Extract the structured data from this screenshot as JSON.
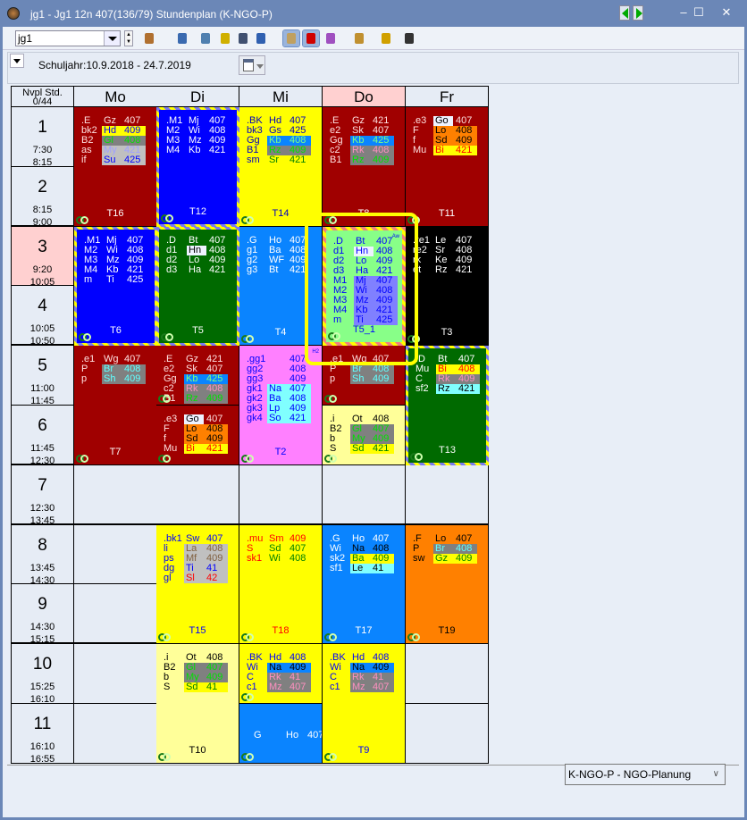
{
  "window": {
    "title": "jg1 - Jg1 12n 407(136/79)  Stundenplan  (K-NGO-P)",
    "minimize": "–",
    "maximize": "☐",
    "close": "✕"
  },
  "toolbar": {
    "element_value": "jg1",
    "icons": [
      "teachers-icon",
      "expand-icon",
      "door-icon",
      "lock-icon",
      "binoculars-icon",
      "undo-icon",
      "palette-icon",
      "pin-icon",
      "tree-icon",
      "settings-page-icon",
      "gear-icon",
      "list-menu-icon"
    ]
  },
  "panel": {
    "school_year": "Schuljahr:10.9.2018 - 24.7.2019"
  },
  "grid": {
    "corner": [
      "Nvpl Std.",
      "0/44"
    ],
    "days": [
      "Mo",
      "Di",
      "Mi",
      "Do",
      "Fr"
    ],
    "highlight_day": "Do",
    "highlight_period": 3,
    "periods": [
      {
        "n": "1",
        "start": "7:30",
        "end": "8:15"
      },
      {
        "n": "2",
        "start": "8:15",
        "end": "9:00"
      },
      {
        "n": "3",
        "start": "9:20",
        "end": "10:05"
      },
      {
        "n": "4",
        "start": "10:05",
        "end": "10:50"
      },
      {
        "n": "5",
        "start": "11:00",
        "end": "11:45"
      },
      {
        "n": "6",
        "start": "11:45",
        "end": "12:30"
      },
      {
        "n": "7",
        "start": "12:30",
        "end": "13:45"
      },
      {
        "n": "8",
        "start": "13:45",
        "end": "14:30"
      },
      {
        "n": "9",
        "start": "14:30",
        "end": "15:15"
      },
      {
        "n": "10",
        "start": "15:25",
        "end": "16:10"
      },
      {
        "n": "11",
        "start": "16:10",
        "end": "16:55"
      }
    ]
  },
  "colors": {
    "darkred": "#a00000",
    "blue": "#0000ff",
    "green": "#006a00",
    "lightblue": "#0a84ff",
    "yellow": "#ffff00",
    "lightyellow": "#ffff99",
    "pink": "#ff80ff",
    "orange": "#ff8000",
    "black": "#000000",
    "lightgreen": "#88ff88",
    "selection": "#ffff00"
  },
  "blocks": [
    {
      "day": 0,
      "p": 1,
      "span": 2,
      "bg": "#a00000",
      "fg": "#ffe0e0",
      "label": "T16",
      "lc": "#ffffff",
      "lines": [
        {
          "c": ".E",
          "t": "Gz",
          "r": "407"
        },
        {
          "c": "bk2",
          "t": "Hd",
          "r": "409",
          "bg": "#ffff00",
          "fg": "#0000ff"
        },
        {
          "c": "B2",
          "t": "Gl",
          "r": "408",
          "bg": "#808080",
          "fg": "#00e000"
        },
        {
          "c": "as",
          "t": "My",
          "r": "421",
          "bg": "#c0c0c0",
          "fg": "#a0a0ff"
        },
        {
          "c": "if",
          "t": "Su",
          "r": "425",
          "bg": "#c0c0c0",
          "fg": "#0000ff"
        }
      ]
    },
    {
      "day": 0,
      "p": 3,
      "span": 2,
      "bg": "#0000ff",
      "fg": "#ffffff",
      "dash": true,
      "label": "T6",
      "lc": "#ffffff",
      "lines": [
        {
          "c": ".M1",
          "t": "Mj",
          "r": "407"
        },
        {
          "c": "M2",
          "t": "Wi",
          "r": "408"
        },
        {
          "c": "M3",
          "t": "Mz",
          "r": "409"
        },
        {
          "c": "M4",
          "t": "Kb",
          "r": "421"
        },
        {
          "c": "m",
          "t": "Ti",
          "r": "425"
        }
      ]
    },
    {
      "day": 0,
      "p": 5,
      "span": 2,
      "bg": "#a00000",
      "fg": "#ffe0e0",
      "label": "T7",
      "lc": "#ffffff",
      "lines": [
        {
          "c": ".e1",
          "t": "Wg",
          "r": "407"
        },
        {
          "c": "P",
          "t": "Br",
          "r": "408",
          "bg": "#808080",
          "fg": "#60ffff"
        },
        {
          "c": "p",
          "t": "Sh",
          "r": "409",
          "bg": "#808080",
          "fg": "#60ffff"
        }
      ]
    },
    {
      "day": 1,
      "p": 1,
      "span": 2,
      "bg": "#0000ff",
      "fg": "#ffffff",
      "dash": true,
      "label": "T12",
      "lc": "#ffffff",
      "lines": [
        {
          "c": ".M1",
          "t": "Mj",
          "r": "407"
        },
        {
          "c": "M2",
          "t": "Wi",
          "r": "408"
        },
        {
          "c": "M3",
          "t": "Mz",
          "r": "409"
        },
        {
          "c": "M4",
          "t": "Kb",
          "r": "421"
        }
      ]
    },
    {
      "day": 1,
      "p": 3,
      "span": 2,
      "bg": "#006a00",
      "fg": "#ffffff",
      "dash": true,
      "label": "T5",
      "lc": "#ffffff",
      "lines": [
        {
          "c": ".D",
          "t": "Bt",
          "r": "407"
        },
        {
          "c": "d1",
          "t": "Hn",
          "r": "408",
          "bg": "#eef2ff",
          "fg": "#000000",
          "tonly": true
        },
        {
          "c": "d2",
          "t": "Lo",
          "r": "409"
        },
        {
          "c": "d3",
          "t": "Ha",
          "r": "421"
        }
      ]
    },
    {
      "day": 1,
      "p": 5,
      "span": 1,
      "bg": "#a00000",
      "fg": "#ffe0e0",
      "label": "",
      "lc": "#ffffff",
      "lines": [
        {
          "c": ".E",
          "t": "Gz",
          "r": "421"
        },
        {
          "c": "e2",
          "t": "Sk",
          "r": "407"
        },
        {
          "c": "Gg",
          "t": "Kb",
          "r": "425",
          "bg": "#0a84ff",
          "fg": "#80ff80"
        },
        {
          "c": "c2",
          "t": "Rk",
          "r": "408",
          "bg": "#808080",
          "fg": "#ff90c0"
        },
        {
          "c": "B1",
          "t": "Rz",
          "r": "409",
          "bg": "#808080",
          "fg": "#00e000"
        }
      ]
    },
    {
      "day": 1,
      "p": 6,
      "span": 1,
      "bg": "#a00000",
      "fg": "#ffe0e0",
      "label": "",
      "lc": "#ffffff",
      "lines": [
        {
          "c": ".e3",
          "t": "Go",
          "r": "407",
          "bg": "#eef2ff",
          "fg": "#000000",
          "tonly": true
        },
        {
          "c": "F",
          "t": "Lo",
          "r": "408",
          "bg": "#ff8000",
          "fg": "#000000"
        },
        {
          "c": "f",
          "t": "Sd",
          "r": "409",
          "bg": "#ff8000",
          "fg": "#000000"
        },
        {
          "c": "Mu",
          "t": "Bi",
          "r": "421",
          "bg": "#ffff00",
          "fg": "#ff0000"
        }
      ]
    },
    {
      "day": 1,
      "p": 8,
      "span": 2,
      "bg": "#ffff00",
      "fg": "#0000ff",
      "label": "T15",
      "lc": "#0000ff",
      "lines": [
        {
          "c": ".bk1",
          "t": "Sw",
          "r": "407"
        },
        {
          "c": "li",
          "t": "La",
          "r": "408",
          "bg": "#c0c0c0",
          "fg": "#806040"
        },
        {
          "c": "ps",
          "t": "Mf",
          "r": "409",
          "bg": "#c0c0c0",
          "fg": "#806040"
        },
        {
          "c": "dg",
          "t": "Ti",
          "r": "41",
          "bg": "#c0c0c0",
          "fg": "#0000ff"
        },
        {
          "c": "gl",
          "t": "Sl",
          "r": "42",
          "bg": "#c0c0c0",
          "fg": "#ff0000"
        }
      ]
    },
    {
      "day": 1,
      "p": 10,
      "span": 2,
      "bg": "#ffff99",
      "fg": "#000000",
      "label": "T10",
      "lc": "#000000",
      "lines": [
        {
          "c": ".i",
          "t": "Ot",
          "r": "408"
        },
        {
          "c": "B2",
          "t": "Gl",
          "r": "407",
          "bg": "#808080",
          "fg": "#00e000"
        },
        {
          "c": "b",
          "t": "My",
          "r": "409",
          "bg": "#808080",
          "fg": "#00e000"
        },
        {
          "c": "S",
          "t": "Sd",
          "r": "41",
          "bg": "#ffff00",
          "fg": "#008000"
        }
      ]
    },
    {
      "day": 2,
      "p": 1,
      "span": 2,
      "bg": "#ffff00",
      "fg": "#0000c0",
      "label": "T14",
      "lc": "#0000c0",
      "lines": [
        {
          "c": ".BK",
          "t": "Hd",
          "r": "407"
        },
        {
          "c": "bk3",
          "t": "Gs",
          "r": "425"
        },
        {
          "c": "Gg",
          "t": "Kb",
          "r": "408",
          "bg": "#0a84ff",
          "fg": "#80ff80"
        },
        {
          "c": "B1",
          "t": "Rz",
          "r": "409",
          "bg": "#808080",
          "fg": "#00e000"
        },
        {
          "c": "sm",
          "t": "Sr",
          "r": "421",
          "fg": "#008000",
          "lcol": "#0000c0"
        }
      ]
    },
    {
      "day": 2,
      "p": 3,
      "span": 2,
      "bg": "#0a84ff",
      "fg": "#ffffff",
      "label": "T4",
      "lc": "#ffffff",
      "lines": [
        {
          "c": ".G",
          "t": "Ho",
          "r": "407"
        },
        {
          "c": "g1",
          "t": "Ba",
          "r": "408"
        },
        {
          "c": "g2",
          "t": "WF",
          "r": "409"
        },
        {
          "c": "g3",
          "t": "Bt",
          "r": "421"
        }
      ]
    },
    {
      "day": 2,
      "p": 5,
      "span": 2,
      "bg": "#ff80ff",
      "fg": "#0000ff",
      "label": "T2",
      "lc": "#0000ff",
      "tag": "H2",
      "lines": [
        {
          "c": ".gg1",
          "t": "",
          "r": "407"
        },
        {
          "c": "gg2",
          "t": "",
          "r": "408"
        },
        {
          "c": "gg3",
          "t": "",
          "r": "409"
        },
        {
          "c": "gk1",
          "t": "Na",
          "r": "407",
          "bg": "#80ffff",
          "fg": "#0000ff"
        },
        {
          "c": "gk2",
          "t": "Ba",
          "r": "408",
          "bg": "#80ffff",
          "fg": "#0000ff"
        },
        {
          "c": "gk3",
          "t": "Lp",
          "r": "409",
          "bg": "#80ffff",
          "fg": "#0000ff"
        },
        {
          "c": "gk4",
          "t": "So",
          "r": "421",
          "bg": "#80ffff",
          "fg": "#0000ff"
        }
      ]
    },
    {
      "day": 2,
      "p": 8,
      "span": 2,
      "bg": "#ffff00",
      "fg": "#ff0000",
      "label": "T18",
      "lc": "#ff0000",
      "lines": [
        {
          "c": ".mu",
          "t": "Sm",
          "r": "409"
        },
        {
          "c": "S",
          "t": "Sd",
          "r": "407",
          "fg": "#008000",
          "lcol": "#ff0000"
        },
        {
          "c": "sk1",
          "t": "Wi",
          "r": "408",
          "fg": "#008000",
          "lcol": "#ff0000"
        }
      ]
    },
    {
      "day": 2,
      "p": 10,
      "span": 1,
      "bg": "#ffff00",
      "fg": "#0000ff",
      "label": "",
      "lc": "#0000ff",
      "lines": [
        {
          "c": ".BK",
          "t": "Hd",
          "r": "408"
        },
        {
          "c": "Wi",
          "t": "Na",
          "r": "409",
          "bg": "#0a84ff",
          "fg": "#000000"
        },
        {
          "c": "C",
          "t": "Rk",
          "r": "41",
          "bg": "#808080",
          "fg": "#ff90c0"
        },
        {
          "c": "c1",
          "t": "Mz",
          "r": "407",
          "bg": "#808080",
          "fg": "#ff90c0"
        }
      ]
    },
    {
      "day": 2,
      "p": 11,
      "span": 1,
      "bg": "#0a84ff",
      "fg": "#ffffff",
      "label": "",
      "lc": "#ffffff",
      "center": true,
      "lines": [
        {
          "c": "G",
          "t": "Ho",
          "r": "407"
        }
      ]
    },
    {
      "day": 3,
      "p": 1,
      "span": 2,
      "bg": "#a00000",
      "fg": "#ffe0e0",
      "label": "T8",
      "lc": "#ffffff",
      "lines": [
        {
          "c": ".E",
          "t": "Gz",
          "r": "421"
        },
        {
          "c": "e2",
          "t": "Sk",
          "r": "407"
        },
        {
          "c": "Gg",
          "t": "Kb",
          "r": "425",
          "bg": "#0a84ff",
          "fg": "#80ff80"
        },
        {
          "c": "c2",
          "t": "Rk",
          "r": "408",
          "bg": "#808080",
          "fg": "#ff90c0"
        },
        {
          "c": "B1",
          "t": "Rz",
          "r": "409",
          "bg": "#808080",
          "fg": "#00e000"
        }
      ]
    },
    {
      "day": 3,
      "p": 3,
      "span": 2,
      "bg": "#88ff88",
      "fg": "#0000ff",
      "dashp": true,
      "label": "T5_1",
      "lc": "#0000ff",
      "tag": "Aw",
      "lines": [
        {
          "c": ".D",
          "t": "Bt",
          "r": "407"
        },
        {
          "c": "d1",
          "t": "Hn",
          "r": "408",
          "bg": "#eef2ff",
          "fg": "#0000ff",
          "tonly": true
        },
        {
          "c": "d2",
          "t": "Lo",
          "r": "409"
        },
        {
          "c": "d3",
          "t": "Ha",
          "r": "421"
        },
        {
          "c": "M1",
          "t": "Mj",
          "r": "407",
          "bg": "#8080ff",
          "fg": "#0000ff"
        },
        {
          "c": "M2",
          "t": "Wi",
          "r": "408",
          "bg": "#8080ff",
          "fg": "#0000ff"
        },
        {
          "c": "M3",
          "t": "Mz",
          "r": "409",
          "bg": "#8080ff",
          "fg": "#0000ff"
        },
        {
          "c": "M4",
          "t": "Kb",
          "r": "421",
          "bg": "#8080ff",
          "fg": "#0000ff"
        },
        {
          "c": "m",
          "t": "Ti",
          "r": "425",
          "bg": "#8080ff",
          "fg": "#0000ff"
        }
      ]
    },
    {
      "day": 3,
      "p": 5,
      "span": 1,
      "bg": "#a00000",
      "fg": "#ffe0e0",
      "label": "",
      "lc": "#ffffff",
      "lines": [
        {
          "c": ".e1",
          "t": "Wg",
          "r": "407"
        },
        {
          "c": "P",
          "t": "Br",
          "r": "408",
          "bg": "#808080",
          "fg": "#60ffff"
        },
        {
          "c": "p",
          "t": "Sh",
          "r": "409",
          "bg": "#808080",
          "fg": "#60ffff"
        }
      ]
    },
    {
      "day": 3,
      "p": 6,
      "span": 1,
      "bg": "#ffff99",
      "fg": "#000000",
      "label": "",
      "lc": "#000000",
      "lines": [
        {
          "c": ".i",
          "t": "Ot",
          "r": "408"
        },
        {
          "c": "B2",
          "t": "Gl",
          "r": "407",
          "bg": "#808080",
          "fg": "#00e000"
        },
        {
          "c": "b",
          "t": "My",
          "r": "409",
          "bg": "#808080",
          "fg": "#00e000"
        },
        {
          "c": "S",
          "t": "Sd",
          "r": "421",
          "bg": "#ffff00",
          "fg": "#008000"
        }
      ]
    },
    {
      "day": 3,
      "p": 8,
      "span": 2,
      "bg": "#0a84ff",
      "fg": "#ffffff",
      "label": "T17",
      "lc": "#ffffff",
      "lines": [
        {
          "c": ".G",
          "t": "Ho",
          "r": "407"
        },
        {
          "c": "Wi",
          "t": "Na",
          "r": "408",
          "fg": "#000000",
          "lcol": "#ffffff"
        },
        {
          "c": "sk2",
          "t": "Ba",
          "r": "409",
          "bg": "#ffff00",
          "fg": "#008000"
        },
        {
          "c": "sf1",
          "t": "Le",
          "r": "41",
          "bg": "#80ffff",
          "fg": "#000000"
        }
      ]
    },
    {
      "day": 3,
      "p": 10,
      "span": 2,
      "bg": "#ffff00",
      "fg": "#0000ff",
      "label": "T9",
      "lc": "#0000ff",
      "lines": [
        {
          "c": ".BK",
          "t": "Hd",
          "r": "408"
        },
        {
          "c": "Wi",
          "t": "Na",
          "r": "409",
          "bg": "#0a84ff",
          "fg": "#000000"
        },
        {
          "c": "C",
          "t": "Rk",
          "r": "41",
          "bg": "#808080",
          "fg": "#ff90c0"
        },
        {
          "c": "c1",
          "t": "Mz",
          "r": "407",
          "bg": "#808080",
          "fg": "#ff90c0"
        }
      ]
    },
    {
      "day": 4,
      "p": 1,
      "span": 2,
      "bg": "#a00000",
      "fg": "#ffe0e0",
      "label": "T11",
      "lc": "#ffffff",
      "lines": [
        {
          "c": ".e3",
          "t": "Go",
          "r": "407",
          "bg": "#eef2ff",
          "fg": "#000000",
          "tonly": true
        },
        {
          "c": "F",
          "t": "Lo",
          "r": "408",
          "bg": "#ff8000",
          "fg": "#000000"
        },
        {
          "c": "f",
          "t": "Sd",
          "r": "409",
          "bg": "#ff8000",
          "fg": "#000000"
        },
        {
          "c": "Mu",
          "t": "Bi",
          "r": "421",
          "bg": "#ffff00",
          "fg": "#ff0000"
        }
      ]
    },
    {
      "day": 4,
      "p": 3,
      "span": 2,
      "bg": "#000000",
      "fg": "#ffffff",
      "label": "T3",
      "lc": "#ffffff",
      "lines": [
        {
          "c": ".re1",
          "t": "Le",
          "r": "407"
        },
        {
          "c": "re2",
          "t": "Sr",
          "r": "408"
        },
        {
          "c": "rk",
          "t": "Ke",
          "r": "409"
        },
        {
          "c": "et",
          "t": "Rz",
          "r": "421"
        }
      ]
    },
    {
      "day": 4,
      "p": 5,
      "span": 2,
      "bg": "#006a00",
      "fg": "#ffffff",
      "dash": true,
      "label": "T13",
      "lc": "#ffffff",
      "lines": [
        {
          "c": ".D",
          "t": "Bt",
          "r": "407"
        },
        {
          "c": "Mu",
          "t": "Bi",
          "r": "408",
          "bg": "#ffff00",
          "fg": "#ff0000"
        },
        {
          "c": "C",
          "t": "Rk",
          "r": "409",
          "bg": "#808080",
          "fg": "#ff90c0"
        },
        {
          "c": "sf2",
          "t": "Rz",
          "r": "421",
          "bg": "#80ffff",
          "fg": "#000000"
        }
      ]
    },
    {
      "day": 4,
      "p": 8,
      "span": 2,
      "bg": "#ff8000",
      "fg": "#000000",
      "label": "T19",
      "lc": "#000000",
      "lines": [
        {
          "c": ".F",
          "t": "Lo",
          "r": "407"
        },
        {
          "c": "P",
          "t": "Br",
          "r": "408",
          "bg": "#808080",
          "fg": "#60ffff"
        },
        {
          "c": "sw",
          "t": "Gz",
          "r": "409",
          "bg": "#ffff00",
          "fg": "#008000"
        }
      ]
    }
  ],
  "footer": {
    "profile": "K-NGO-P - NGO-Planung"
  }
}
